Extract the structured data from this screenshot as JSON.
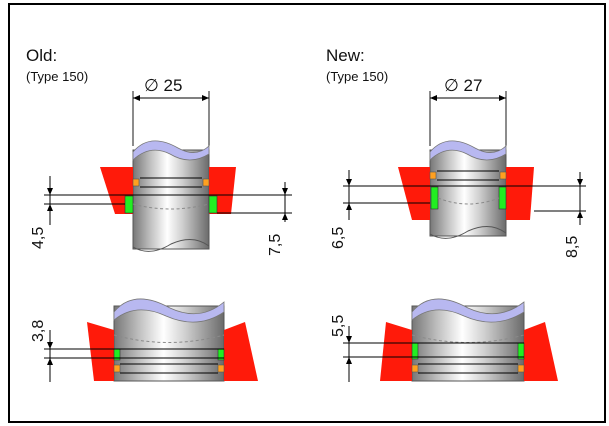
{
  "panels": {
    "old": {
      "title": "Old:",
      "subtitle": "(Type 150)",
      "diameter": "∅ 25",
      "top_left_dim": "4,5",
      "top_right_dim": "7,5",
      "bottom_dim": "3,8"
    },
    "new": {
      "title": "New:",
      "subtitle": "(Type 150)",
      "diameter": "∅ 27",
      "top_left_dim": "6,5",
      "top_right_dim": "8,5",
      "bottom_dim": "5,5"
    }
  },
  "colors": {
    "housing": "#ff1a0a",
    "o_ring": "#22ee22",
    "backup_ring": "#ffa020",
    "shaft_end": "#b8b8f0",
    "background": "#ffffff",
    "frame": "#000000"
  }
}
